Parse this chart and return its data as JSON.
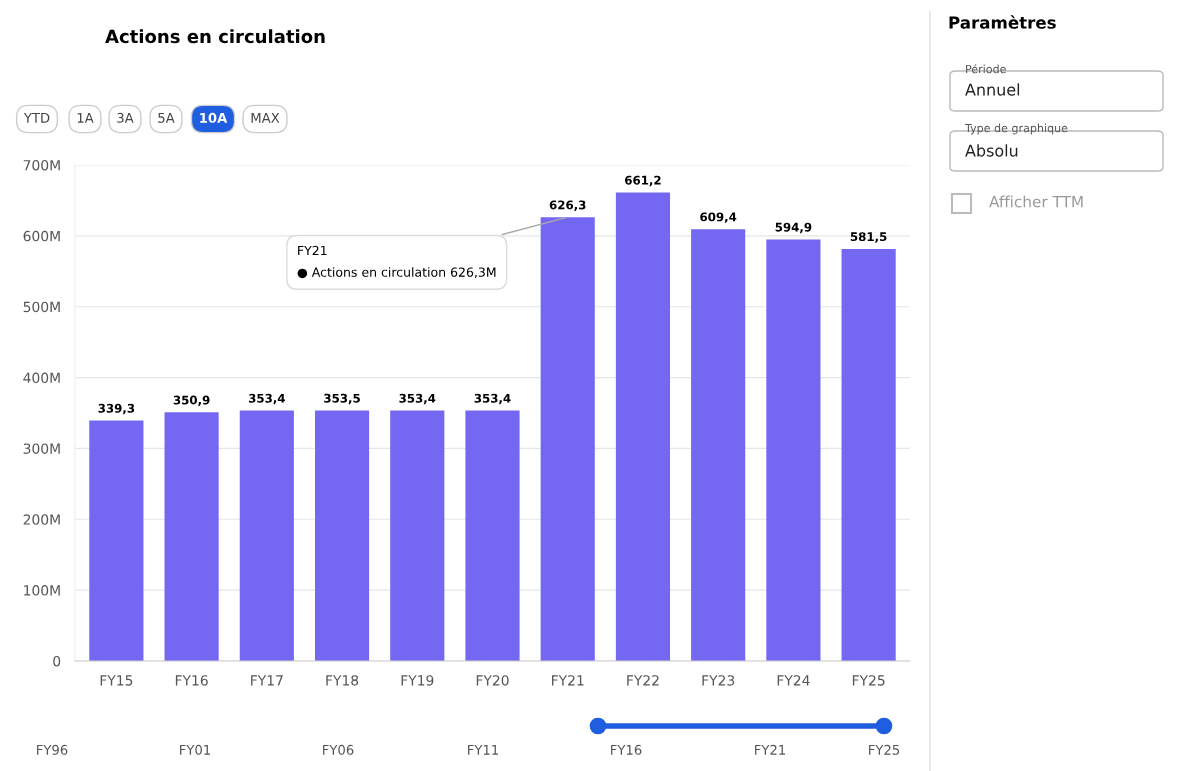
{
  "chart_data": {
    "type": "bar",
    "title": "Actions en circulation",
    "categories": [
      "FY15",
      "FY16",
      "FY17",
      "FY18",
      "FY19",
      "FY20",
      "FY21",
      "FY22",
      "FY23",
      "FY24",
      "FY25"
    ],
    "values": [
      339.3,
      350.9,
      353.4,
      353.5,
      353.4,
      353.4,
      626.3,
      661.2,
      609.4,
      594.9,
      581.5
    ],
    "value_labels": [
      "339,3",
      "350,9",
      "353,4",
      "353,5",
      "353,4",
      "353,4",
      "626,3",
      "661,2",
      "609,4",
      "594,9",
      "581,5"
    ],
    "color": "#7468f2",
    "ylim": [
      0,
      700
    ],
    "yticks": [
      {
        "value": 0,
        "label": "0"
      },
      {
        "value": 100,
        "label": "100M"
      },
      {
        "value": 200,
        "label": "200M"
      },
      {
        "value": 300,
        "label": "300M"
      },
      {
        "value": 400,
        "label": "400M"
      },
      {
        "value": 500,
        "label": "500M"
      },
      {
        "value": 600,
        "label": "600M"
      },
      {
        "value": 700,
        "label": "700M"
      }
    ],
    "grid": "y",
    "legend": false,
    "annotations": [
      {
        "text": "FY21\n● Actions en circulation 626,3M",
        "x": "FY21",
        "y": 626.3
      },
      "YTD",
      "1A",
      "3A",
      "5A",
      "10A",
      "MAX",
      "Paramètres",
      "Période",
      "Annuel",
      "Type de graphique",
      "Absolu",
      "Afficher TTM",
      "FY96",
      "FY01",
      "FY06",
      "FY11",
      "FY16",
      "FY21",
      "FY25"
    ]
  }
}
